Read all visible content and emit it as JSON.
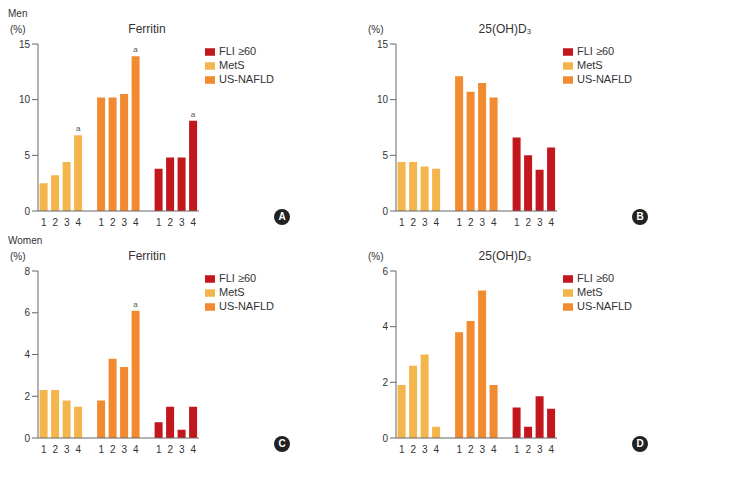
{
  "chart_data": [
    {
      "type": "bar",
      "group": "Men",
      "panel": "A",
      "title": "Ferritin",
      "y_label": "(%)",
      "categories": [
        "1",
        "2",
        "3",
        "4"
      ],
      "series": [
        {
          "name": "MetS",
          "color": "#f4b54c",
          "values": [
            2.5,
            3.2,
            4.4,
            6.8
          ]
        },
        {
          "name": "US-NAFLD",
          "color": "#f28a30",
          "values": [
            10.2,
            10.2,
            10.5,
            13.9
          ]
        },
        {
          "name": "FLI ≥60",
          "color": "#c1171d",
          "values": [
            3.8,
            4.8,
            4.8,
            8.1
          ]
        }
      ],
      "annotations": [
        {
          "series": "MetS",
          "category": "4",
          "text": "a"
        },
        {
          "series": "US-NAFLD",
          "category": "4",
          "text": "a"
        },
        {
          "series": "FLI ≥60",
          "category": "4",
          "text": "a"
        }
      ],
      "ylim": [
        0,
        15
      ],
      "yticks": [
        0,
        5,
        10,
        15
      ],
      "grid": false,
      "legend": "upper right"
    },
    {
      "type": "bar",
      "group": "Men",
      "panel": "B",
      "title": "25(OH)D₃",
      "y_label": "(%)",
      "categories": [
        "1",
        "2",
        "3",
        "4"
      ],
      "series": [
        {
          "name": "MetS",
          "color": "#f4b54c",
          "values": [
            4.4,
            4.4,
            4.0,
            3.8
          ]
        },
        {
          "name": "US-NAFLD",
          "color": "#f28a30",
          "values": [
            12.1,
            10.7,
            11.5,
            10.2
          ]
        },
        {
          "name": "FLI ≥60",
          "color": "#c1171d",
          "values": [
            6.6,
            5.0,
            3.7,
            5.7
          ]
        }
      ],
      "annotations": [],
      "ylim": [
        0,
        15
      ],
      "yticks": [
        0,
        5,
        10,
        15
      ],
      "grid": false,
      "legend": "upper right"
    },
    {
      "type": "bar",
      "group": "Women",
      "panel": "C",
      "title": "Ferritin",
      "y_label": "(%)",
      "categories": [
        "1",
        "2",
        "3",
        "4"
      ],
      "series": [
        {
          "name": "MetS",
          "color": "#f4b54c",
          "values": [
            2.3,
            2.3,
            1.8,
            1.5
          ]
        },
        {
          "name": "US-NAFLD",
          "color": "#f28a30",
          "values": [
            1.8,
            3.8,
            3.4,
            6.1
          ]
        },
        {
          "name": "FLI ≥60",
          "color": "#c1171d",
          "values": [
            0.75,
            1.5,
            0.4,
            1.5
          ]
        }
      ],
      "annotations": [
        {
          "series": "US-NAFLD",
          "category": "4",
          "text": "a"
        }
      ],
      "ylim": [
        0,
        8
      ],
      "yticks": [
        0,
        2,
        4,
        6,
        8
      ],
      "grid": false,
      "legend": "upper right"
    },
    {
      "type": "bar",
      "group": "Women",
      "panel": "D",
      "title": "25(OH)D₃",
      "y_label": "(%)",
      "categories": [
        "1",
        "2",
        "3",
        "4"
      ],
      "series": [
        {
          "name": "MetS",
          "color": "#f4b54c",
          "values": [
            1.9,
            2.6,
            3.0,
            0.4
          ]
        },
        {
          "name": "US-NAFLD",
          "color": "#f28a30",
          "values": [
            3.8,
            4.2,
            5.3,
            1.9
          ]
        },
        {
          "name": "FLI ≥60",
          "color": "#c1171d",
          "values": [
            1.1,
            0.4,
            1.5,
            1.05
          ]
        }
      ],
      "annotations": [],
      "ylim": [
        0,
        6
      ],
      "yticks": [
        0,
        2,
        4,
        6
      ],
      "grid": false,
      "legend": "upper right"
    }
  ]
}
